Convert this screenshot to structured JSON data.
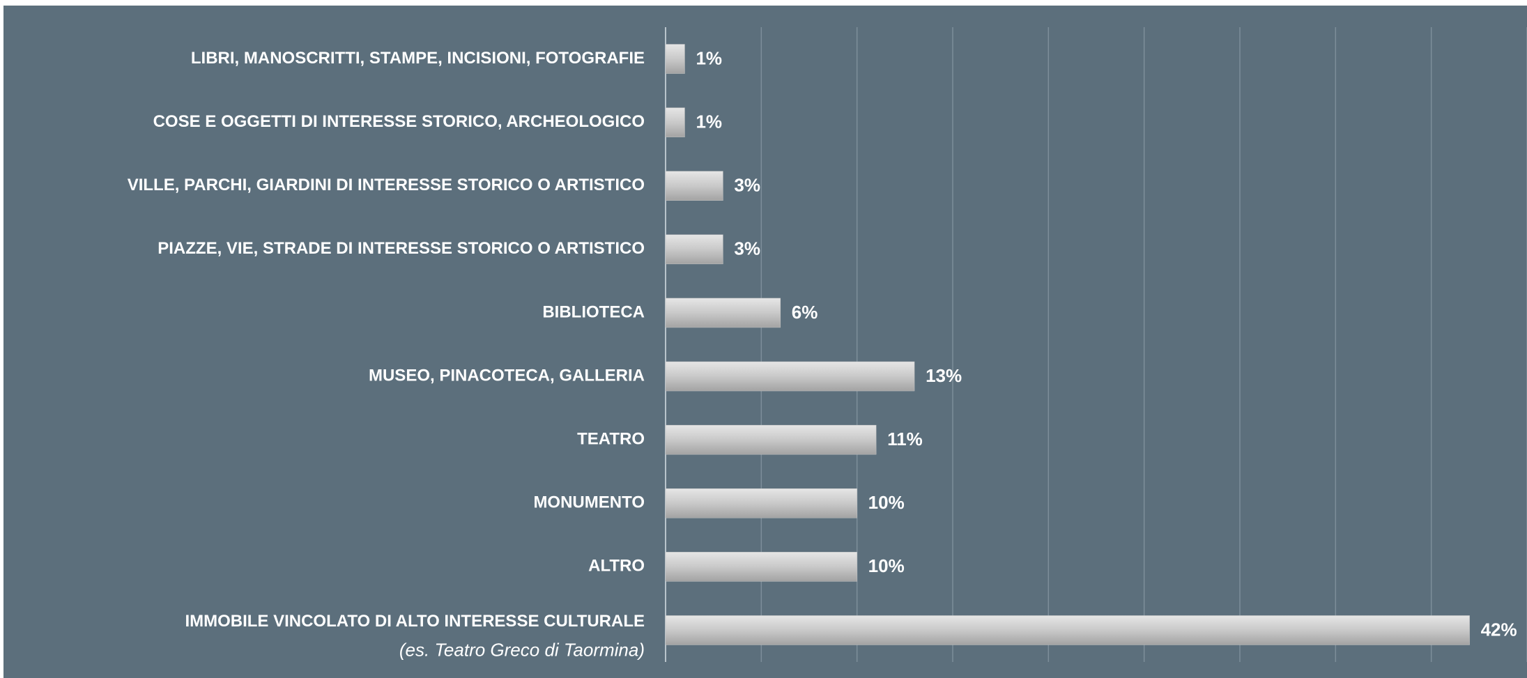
{
  "chart_data": {
    "type": "bar",
    "orientation": "horizontal",
    "categories": [
      "LIBRI, MANOSCRITTI, STAMPE, INCISIONI, FOTOGRAFIE",
      "COSE E OGGETTI DI INTERESSE STORICO, ARCHEOLOGICO",
      "VILLE, PARCHI, GIARDINI DI INTERESSE STORICO O ARTISTICO",
      "PIAZZE, VIE, STRADE DI INTERESSE STORICO O ARTISTICO",
      "BIBLIOTECA",
      "MUSEO, PINACOTECA, GALLERIA",
      "TEATRO",
      "MONUMENTO",
      "ALTRO",
      "IMMOBILE VINCOLATO DI ALTO INTERESSE CULTURALE"
    ],
    "annotation": "(es. Teatro Greco di Taormina)",
    "values": [
      1,
      1,
      3,
      3,
      6,
      13,
      11,
      10,
      10,
      42
    ],
    "value_labels": [
      "1%",
      "1%",
      "3%",
      "3%",
      "6%",
      "13%",
      "11%",
      "10%",
      "10%",
      "42%"
    ],
    "color": "#c4c4c4",
    "xlim": [
      0,
      45
    ],
    "xticks": [
      0,
      5,
      10,
      15,
      20,
      25,
      30,
      35,
      40,
      45
    ],
    "grid": true
  }
}
